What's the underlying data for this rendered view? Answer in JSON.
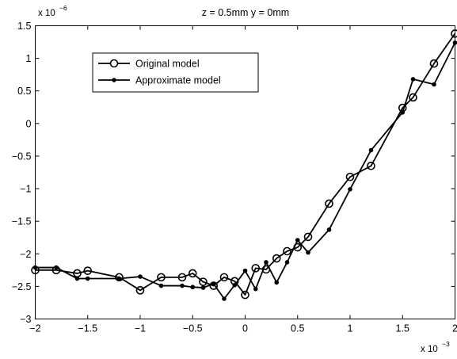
{
  "chart_data": {
    "type": "line",
    "title": "z = 0.5mm  y = 0mm",
    "xlabel": "",
    "ylabel": "",
    "x_multiplier": "x 10",
    "x_multiplier_exp": "−3",
    "y_multiplier": "x 10",
    "y_multiplier_exp": "−6",
    "xlim": [
      -2,
      2
    ],
    "ylim": [
      -3,
      1.5
    ],
    "x_ticks": [
      -2,
      -1.5,
      -1,
      -0.5,
      0,
      0.5,
      1,
      1.5,
      2
    ],
    "x_tick_labels": [
      "−2",
      "−1.5",
      "−1",
      "−0.5",
      "0",
      "0.5",
      "1",
      "1.5",
      "2"
    ],
    "y_ticks": [
      -3,
      -2.5,
      -2,
      -1.5,
      -1,
      -0.5,
      0,
      0.5,
      1,
      1.5
    ],
    "y_tick_labels": [
      "−3",
      "−2.5",
      "−2",
      "−1.5",
      "−1",
      "−0.5",
      "0",
      "0.5",
      "1",
      "1.5"
    ],
    "grid": false,
    "legend_position": "top-left",
    "series": [
      {
        "name": "Original model",
        "marker": "open-circle",
        "color": "#000000",
        "x": [
          -2.0,
          -1.8,
          -1.6,
          -1.5,
          -1.2,
          -1.0,
          -0.8,
          -0.6,
          -0.5,
          -0.4,
          -0.3,
          -0.2,
          -0.1,
          0.0,
          0.1,
          0.2,
          0.3,
          0.4,
          0.5,
          0.6,
          0.8,
          1.0,
          1.2,
          1.5,
          1.6,
          1.8,
          2.0
        ],
        "y": [
          -2.25,
          -2.25,
          -2.3,
          -2.26,
          -2.36,
          -2.56,
          -2.36,
          -2.36,
          -2.3,
          -2.43,
          -2.49,
          -2.36,
          -2.42,
          -2.63,
          -2.22,
          -2.24,
          -2.07,
          -1.96,
          -1.9,
          -1.74,
          -1.23,
          -0.82,
          -0.65,
          0.24,
          0.4,
          0.92,
          1.38
        ]
      },
      {
        "name": "Approximate model",
        "marker": "filled-dot",
        "color": "#000000",
        "x": [
          -2.0,
          -1.8,
          -1.6,
          -1.5,
          -1.2,
          -1.0,
          -0.8,
          -0.6,
          -0.5,
          -0.4,
          -0.3,
          -0.2,
          -0.1,
          0.0,
          0.1,
          0.2,
          0.3,
          0.4,
          0.5,
          0.6,
          0.8,
          1.0,
          1.2,
          1.5,
          1.6,
          1.8,
          2.0
        ],
        "y": [
          -2.21,
          -2.21,
          -2.38,
          -2.38,
          -2.38,
          -2.35,
          -2.49,
          -2.49,
          -2.51,
          -2.52,
          -2.46,
          -2.69,
          -2.48,
          -2.26,
          -2.54,
          -2.13,
          -2.44,
          -2.13,
          -1.79,
          -1.98,
          -1.63,
          -1.01,
          -0.41,
          0.17,
          0.68,
          0.6,
          1.24
        ]
      }
    ]
  }
}
